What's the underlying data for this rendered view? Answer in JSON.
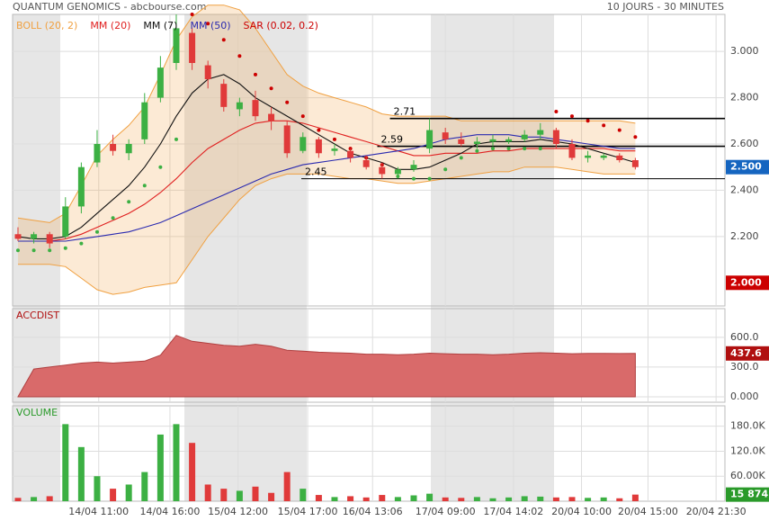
{
  "chart_data": [
    {
      "type": "candlestick",
      "title": "QUANTUM GENOMICS - abcbourse.com",
      "subtitle": "10 JOURS - 30 MINUTES",
      "up_color": "#3cb043",
      "down_color": "#e03a3a",
      "open": [
        2.21,
        2.19,
        2.21,
        2.2,
        2.33,
        2.52,
        2.6,
        2.56,
        2.62,
        2.8,
        2.95,
        3.08,
        2.94,
        2.86,
        2.75,
        2.79,
        2.73,
        2.68,
        2.57,
        2.62,
        2.57,
        2.57,
        2.53,
        2.5,
        2.47,
        2.49,
        2.58,
        2.65,
        2.62,
        2.6,
        2.61,
        2.61,
        2.62,
        2.64,
        2.66,
        2.6,
        2.54,
        2.54,
        2.55,
        2.53
      ],
      "high": [
        2.24,
        2.22,
        2.22,
        2.37,
        2.52,
        2.66,
        2.64,
        2.62,
        2.82,
        2.98,
        3.16,
        3.1,
        2.96,
        2.88,
        2.8,
        2.83,
        2.76,
        2.7,
        2.65,
        2.63,
        2.6,
        2.58,
        2.55,
        2.52,
        2.5,
        2.53,
        2.71,
        2.67,
        2.65,
        2.63,
        2.64,
        2.63,
        2.66,
        2.69,
        2.67,
        2.62,
        2.57,
        2.56,
        2.56,
        2.54
      ],
      "low": [
        2.18,
        2.17,
        2.15,
        2.19,
        2.3,
        2.5,
        2.55,
        2.53,
        2.6,
        2.78,
        2.92,
        2.92,
        2.84,
        2.74,
        2.72,
        2.7,
        2.66,
        2.54,
        2.56,
        2.54,
        2.55,
        2.52,
        2.49,
        2.45,
        2.45,
        2.48,
        2.56,
        2.6,
        2.59,
        2.58,
        2.59,
        2.6,
        2.61,
        2.62,
        2.58,
        2.53,
        2.52,
        2.53,
        2.52,
        2.49
      ],
      "close": [
        2.19,
        2.21,
        2.17,
        2.33,
        2.5,
        2.6,
        2.57,
        2.6,
        2.78,
        2.93,
        3.1,
        2.95,
        2.88,
        2.76,
        2.78,
        2.72,
        2.7,
        2.56,
        2.63,
        2.56,
        2.58,
        2.54,
        2.5,
        2.47,
        2.49,
        2.51,
        2.66,
        2.62,
        2.6,
        2.61,
        2.62,
        2.62,
        2.64,
        2.66,
        2.6,
        2.54,
        2.55,
        2.55,
        2.53,
        2.5
      ],
      "last_label": "2.500",
      "band": {
        "name": "BOLL (20, 2)",
        "color": "#f0a040",
        "upper": [
          2.28,
          2.27,
          2.26,
          2.3,
          2.42,
          2.55,
          2.62,
          2.68,
          2.76,
          2.9,
          3.05,
          3.15,
          3.2,
          3.2,
          3.18,
          3.1,
          3.0,
          2.9,
          2.85,
          2.82,
          2.8,
          2.78,
          2.76,
          2.73,
          2.72,
          2.72,
          2.72,
          2.72,
          2.7,
          2.7,
          2.7,
          2.7,
          2.7,
          2.7,
          2.7,
          2.7,
          2.7,
          2.7,
          2.7,
          2.69
        ],
        "lower": [
          2.08,
          2.08,
          2.08,
          2.07,
          2.02,
          1.97,
          1.95,
          1.96,
          1.98,
          1.99,
          2.0,
          2.1,
          2.2,
          2.28,
          2.36,
          2.42,
          2.45,
          2.47,
          2.47,
          2.47,
          2.46,
          2.45,
          2.45,
          2.44,
          2.43,
          2.43,
          2.44,
          2.45,
          2.46,
          2.47,
          2.48,
          2.48,
          2.5,
          2.5,
          2.5,
          2.49,
          2.48,
          2.47,
          2.47,
          2.47
        ]
      },
      "series": [
        {
          "name": "MM (20)",
          "color": "#e02020",
          "values": [
            2.18,
            2.18,
            2.18,
            2.19,
            2.21,
            2.24,
            2.27,
            2.3,
            2.34,
            2.39,
            2.45,
            2.52,
            2.58,
            2.62,
            2.66,
            2.69,
            2.7,
            2.7,
            2.69,
            2.67,
            2.65,
            2.63,
            2.61,
            2.59,
            2.57,
            2.55,
            2.55,
            2.56,
            2.56,
            2.56,
            2.57,
            2.57,
            2.58,
            2.58,
            2.58,
            2.58,
            2.58,
            2.58,
            2.57,
            2.57
          ]
        },
        {
          "name": "MM (7)",
          "color": "#111111",
          "values": [
            2.2,
            2.19,
            2.19,
            2.2,
            2.24,
            2.3,
            2.36,
            2.42,
            2.5,
            2.6,
            2.72,
            2.82,
            2.88,
            2.9,
            2.86,
            2.8,
            2.76,
            2.72,
            2.68,
            2.64,
            2.6,
            2.56,
            2.54,
            2.52,
            2.49,
            2.49,
            2.5,
            2.53,
            2.56,
            2.6,
            2.61,
            2.61,
            2.61,
            2.62,
            2.61,
            2.6,
            2.58,
            2.56,
            2.54,
            2.52
          ]
        },
        {
          "name": "MM (50)",
          "color": "#2a2ab0",
          "values": [
            2.18,
            2.18,
            2.18,
            2.18,
            2.19,
            2.2,
            2.21,
            2.22,
            2.24,
            2.26,
            2.29,
            2.32,
            2.35,
            2.38,
            2.41,
            2.44,
            2.47,
            2.49,
            2.51,
            2.52,
            2.53,
            2.54,
            2.55,
            2.56,
            2.57,
            2.58,
            2.6,
            2.62,
            2.63,
            2.64,
            2.64,
            2.64,
            2.63,
            2.63,
            2.62,
            2.61,
            2.6,
            2.59,
            2.58,
            2.58
          ]
        },
        {
          "name": "SAR (0.02, 0.2)",
          "color": "#cc0000",
          "style": "dots",
          "values": [
            2.14,
            2.14,
            2.14,
            2.15,
            2.17,
            2.22,
            2.28,
            2.35,
            2.42,
            2.5,
            2.62,
            3.16,
            3.12,
            3.05,
            2.98,
            2.9,
            2.84,
            2.78,
            2.72,
            2.66,
            2.62,
            2.58,
            2.54,
            2.51,
            2.46,
            2.45,
            2.45,
            2.49,
            2.54,
            2.57,
            2.58,
            2.58,
            2.58,
            2.58,
            2.74,
            2.72,
            2.7,
            2.68,
            2.66,
            2.63
          ]
        }
      ],
      "levels": [
        {
          "value": 2.71,
          "x0": 23.5
        },
        {
          "value": 2.59,
          "x0": 22.7
        },
        {
          "value": 2.45,
          "x0": 17.9
        }
      ],
      "marker": {
        "value": 2,
        "label": "2.000"
      },
      "xlim": [
        -0.34,
        44.66
      ],
      "xticks": [
        {
          "value": 5.1,
          "label": "14/04 11:00"
        },
        {
          "value": 9.6,
          "label": "14/04 16:00"
        },
        {
          "value": 13.9,
          "label": "15/04 12:00"
        },
        {
          "value": 18.3,
          "label": "15/04 17:00"
        },
        {
          "value": 22.4,
          "label": "16/04 13:06"
        },
        {
          "value": 27,
          "label": "17/04 09:00"
        },
        {
          "value": 31.3,
          "label": "17/04 14:02"
        },
        {
          "value": 35.6,
          "label": "20/04 10:00"
        },
        {
          "value": 39.8,
          "label": "20/04 15:00"
        },
        {
          "value": 44.1,
          "label": "20/04 21:30"
        }
      ],
      "ylim": [
        1.9,
        3.16
      ],
      "yticks": [
        {
          "value": 2.2,
          "label": "2.200"
        },
        {
          "value": 2.4,
          "label": "2.400"
        },
        {
          "value": 2.6,
          "label": "2.600"
        },
        {
          "value": 2.8,
          "label": "2.800"
        },
        {
          "value": 3,
          "label": "3.000"
        }
      ]
    },
    {
      "type": "area",
      "title": "ACCDIST",
      "color": "#d96a6a",
      "values": [
        0,
        280,
        300,
        320,
        340,
        350,
        340,
        350,
        360,
        420,
        620,
        560,
        540,
        520,
        510,
        530,
        510,
        470,
        460,
        450,
        445,
        440,
        430,
        430,
        425,
        430,
        440,
        435,
        430,
        430,
        425,
        430,
        440,
        445,
        440,
        435,
        438,
        438,
        437,
        437.6
      ],
      "last_label": "437.6",
      "ylim": [
        -55,
        890
      ],
      "yticks": [
        {
          "value": 0,
          "label": "0.000"
        },
        {
          "value": 300,
          "label": "300.0"
        },
        {
          "value": 600,
          "label": "600.0"
        }
      ]
    },
    {
      "type": "bar",
      "title": "VOLUME",
      "values": [
        8000,
        10000,
        12000,
        185000,
        130000,
        60000,
        30000,
        40000,
        70000,
        160000,
        185000,
        140000,
        40000,
        30000,
        25000,
        35000,
        20000,
        70000,
        30000,
        15000,
        10000,
        12000,
        9000,
        15000,
        10000,
        14000,
        18000,
        9000,
        8000,
        10000,
        7000,
        9000,
        12000,
        11000,
        9000,
        10000,
        8000,
        9000,
        7000,
        15874
      ],
      "last_label": "15 874",
      "ylim": [
        0,
        229000
      ],
      "yticks": [
        {
          "value": 60000,
          "label": "60.00K"
        },
        {
          "value": 120000,
          "label": "120.0K"
        },
        {
          "value": 180000,
          "label": "180.0K"
        }
      ]
    }
  ]
}
